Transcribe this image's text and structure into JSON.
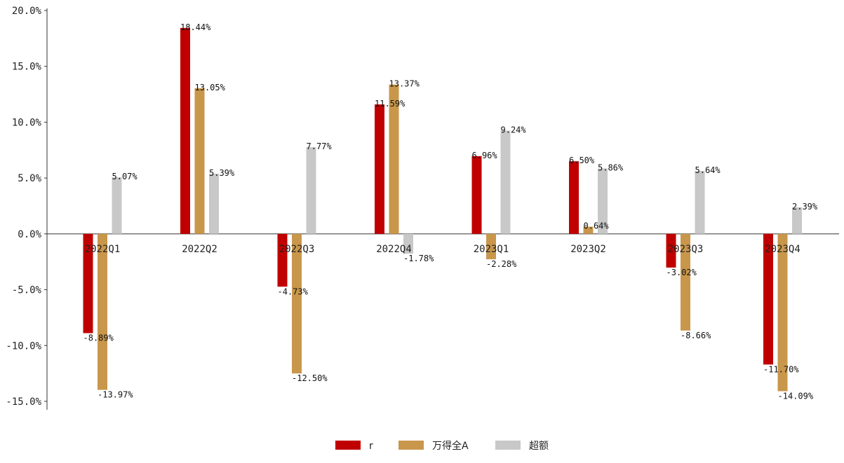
{
  "chart_data": {
    "type": "bar",
    "categories": [
      "2022Q1",
      "2022Q2",
      "2022Q3",
      "2022Q4",
      "2023Q1",
      "2023Q2",
      "2023Q3",
      "2023Q4"
    ],
    "series": [
      {
        "name": "r",
        "color": "#C00000",
        "values": [
          -8.89,
          18.44,
          -4.73,
          11.59,
          6.96,
          6.5,
          -3.02,
          -11.7
        ],
        "labels": [
          "-8.89%",
          "18.44%",
          "-4.73%",
          "11.59%",
          "6.96%",
          "6.50%",
          "-3.02%",
          "-11.70%"
        ]
      },
      {
        "name": "万得全A",
        "color": "#C9974B",
        "values": [
          -13.97,
          13.05,
          -12.5,
          13.37,
          -2.28,
          0.64,
          -8.66,
          -14.09
        ],
        "labels": [
          "-13.97%",
          "13.05%",
          "-12.50%",
          "13.37%",
          "-2.28%",
          "0.64%",
          "-8.66%",
          "-14.09%"
        ]
      },
      {
        "name": "超额",
        "color": "#C8C8C8",
        "values": [
          5.07,
          5.39,
          7.77,
          -1.78,
          9.24,
          5.86,
          5.64,
          2.39
        ],
        "labels": [
          "5.07%",
          "5.39%",
          "7.77%",
          "-1.78%",
          "9.24%",
          "5.86%",
          "5.64%",
          "2.39%"
        ]
      }
    ],
    "ylim": [
      -15,
      20
    ],
    "yticks": [
      -15,
      -10,
      -5,
      0,
      5,
      10,
      15,
      20
    ],
    "ytick_labels": [
      "-15.0%",
      "-10.0%",
      "-5.0%",
      "0.0%",
      "5.0%",
      "10.0%",
      "15.0%",
      "20.0%"
    ],
    "legend_position": "bottom-center",
    "grid": false,
    "title": "",
    "xlabel": "",
    "ylabel": ""
  }
}
